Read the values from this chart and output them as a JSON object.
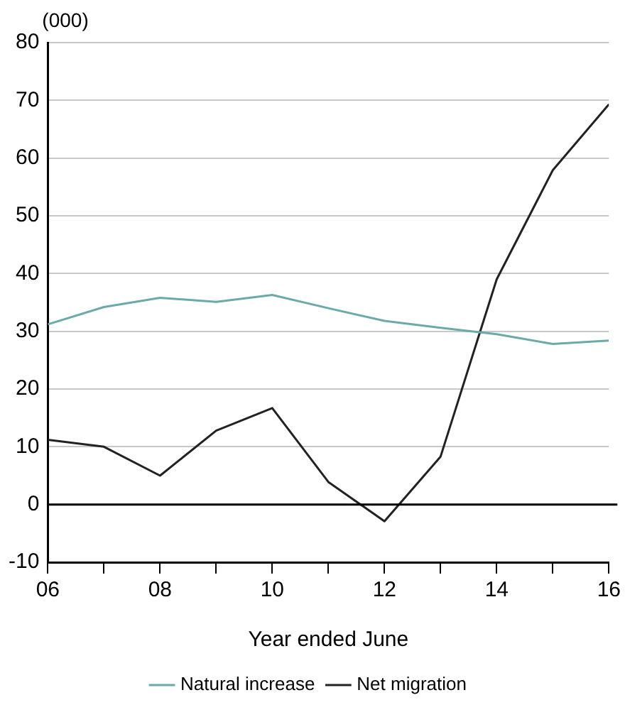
{
  "chart_data": {
    "type": "line",
    "xlabel": "Year ended June",
    "ylabel": "(000)",
    "x": [
      6,
      7,
      8,
      9,
      10,
      11,
      12,
      13,
      14,
      15,
      16
    ],
    "series": [
      {
        "name": "Natural increase",
        "color": "#6aaaa8",
        "values": [
          31.2,
          34.2,
          35.8,
          35.1,
          36.3,
          34,
          31.8,
          30.6,
          29.5,
          27.8,
          28.4
        ]
      },
      {
        "name": "Net migration",
        "color": "#222222",
        "values": [
          11.2,
          10,
          5,
          12.8,
          16.7,
          3.9,
          -2.9,
          8.3,
          39,
          57.9,
          69.3
        ]
      }
    ],
    "xlim": [
      6,
      16
    ],
    "xticks": [
      {
        "value": 6,
        "label": "06"
      },
      {
        "value": 7,
        "label": null
      },
      {
        "value": 8,
        "label": "08"
      },
      {
        "value": 9,
        "label": null
      },
      {
        "value": 10,
        "label": "10"
      },
      {
        "value": 11,
        "label": null
      },
      {
        "value": 12,
        "label": "12"
      },
      {
        "value": 13,
        "label": null
      },
      {
        "value": 14,
        "label": "14"
      },
      {
        "value": 15,
        "label": null
      },
      {
        "value": 16,
        "label": "16"
      }
    ],
    "ylim": [
      -10,
      80
    ],
    "yticks": [
      -10,
      0,
      10,
      20,
      30,
      40,
      50,
      60,
      70,
      80
    ],
    "ref_lines": [
      {
        "axis": "y",
        "value": 0,
        "color": "#000000"
      }
    ],
    "grid": "y",
    "legend": "bottom",
    "marker": "none",
    "line_style": "solid"
  }
}
